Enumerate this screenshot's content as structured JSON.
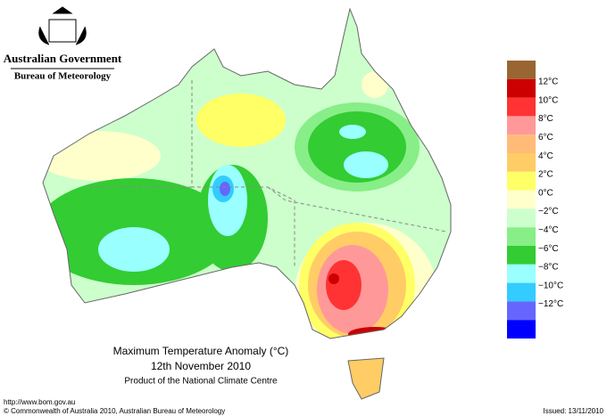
{
  "header": {
    "government": "Australian Government",
    "bureau": "Bureau of Meteorology"
  },
  "legend": {
    "colors": [
      "#996633",
      "#cc0000",
      "#ff3333",
      "#ff9999",
      "#ffbb77",
      "#ffcc66",
      "#ffff66",
      "#ffffcc",
      "#ccffcc",
      "#88ee88",
      "#33cc33",
      "#99ffff",
      "#33ccff",
      "#6666ff",
      "#0000ff"
    ],
    "labels": [
      "12°C",
      "10°C",
      "8°C",
      "6°C",
      "4°C",
      "2°C",
      "0°C",
      "−2°C",
      "−4°C",
      "−6°C",
      "−8°C",
      "−10°C",
      "−12°C"
    ]
  },
  "caption": {
    "title": "Maximum Temperature Anomaly (°C)",
    "date": "12th November 2010",
    "product": "Product of the National Climate Centre"
  },
  "footer": {
    "url": "http://www.bom.gov.au",
    "copyright": "© Commonwealth of Australia 2010, Australian Bureau of Meteorology",
    "issued": "Issued: 13/11/2010"
  }
}
